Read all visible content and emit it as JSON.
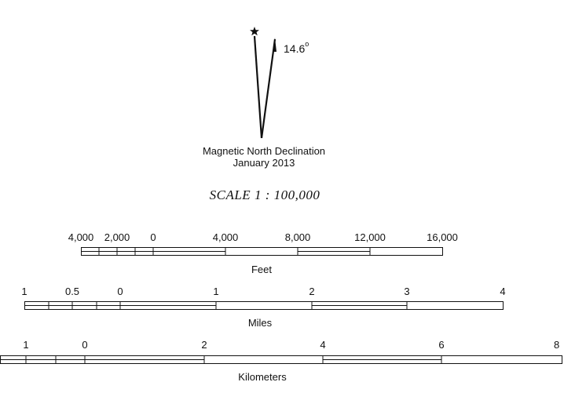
{
  "declination": {
    "angle_value": "14.6",
    "angle_unit": "o",
    "caption_line1": "Magnetic North Declination",
    "caption_line2": "January 2013",
    "true_north_icon": "star-icon",
    "magnetic_north_icon": "half-arrow-icon"
  },
  "scale_title": "SCALE  1 : 100,000",
  "scales": [
    {
      "unit_label": "Feet",
      "ticks": [
        "4,000",
        "2,000",
        "0",
        "4,000",
        "8,000",
        "12,000",
        "16,000"
      ]
    },
    {
      "unit_label": "Miles",
      "ticks": [
        "1",
        "0.5",
        "0",
        "1",
        "2",
        "3",
        "4"
      ]
    },
    {
      "unit_label": "Kilometers",
      "ticks": [
        "1",
        "0",
        "2",
        "4",
        "6",
        "8"
      ]
    }
  ]
}
